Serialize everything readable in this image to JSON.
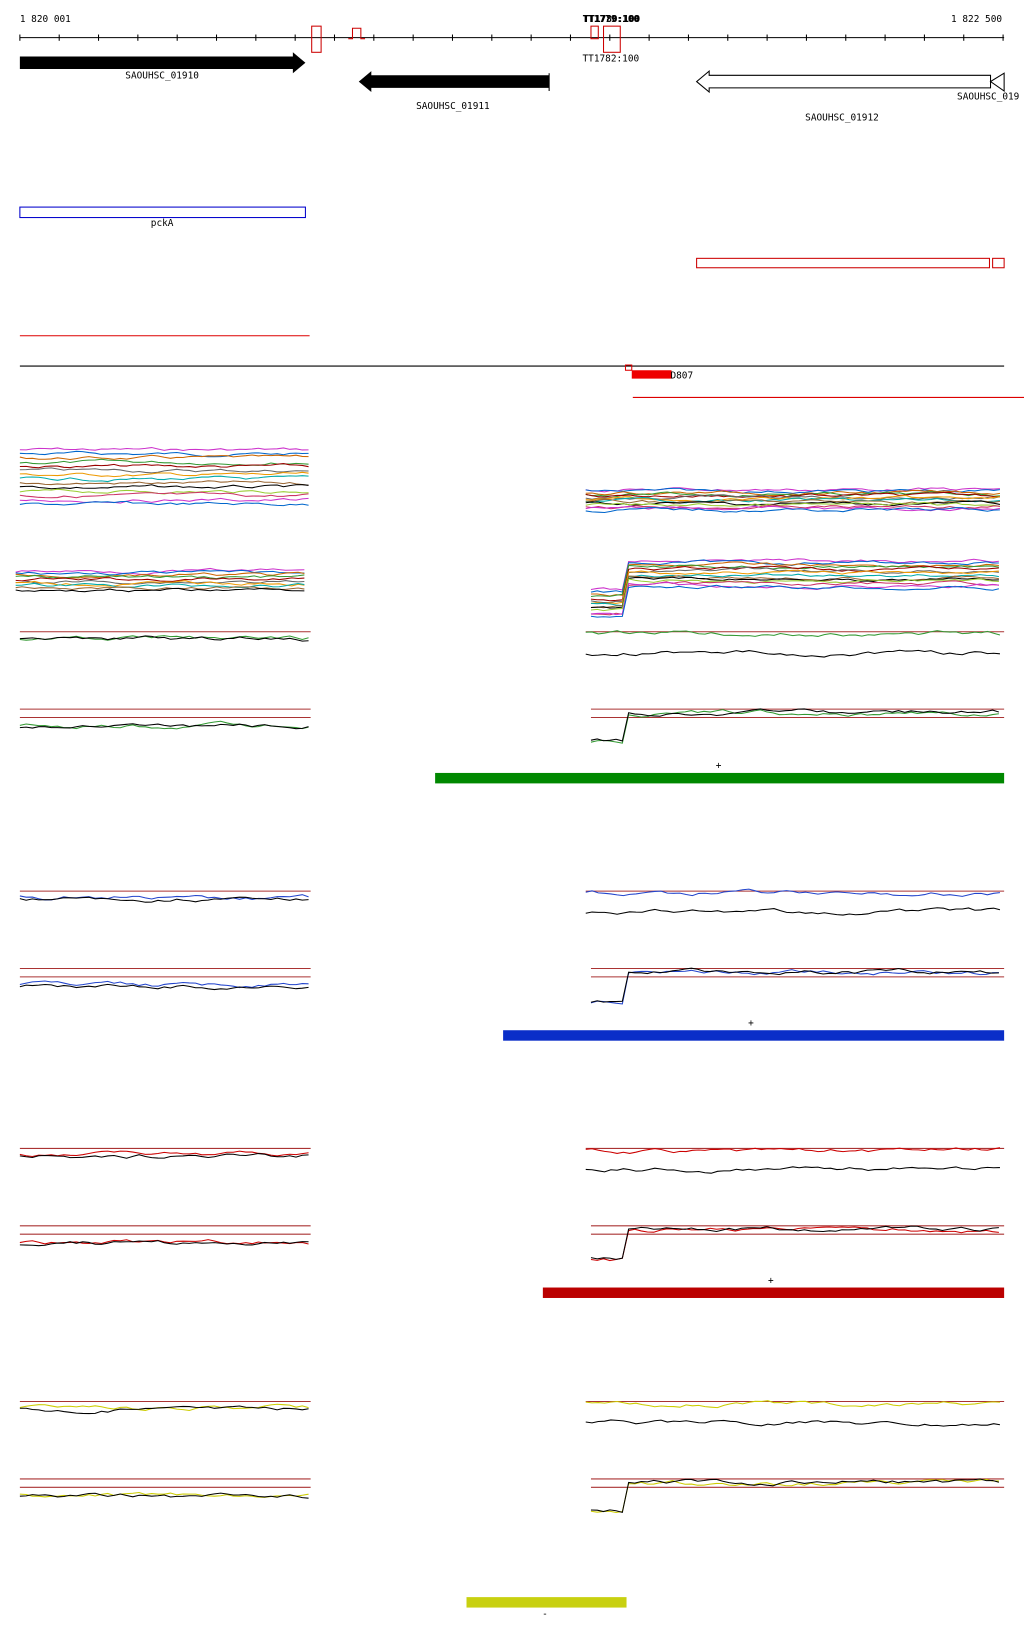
{
  "ruler": {
    "start": "1 820 001",
    "end": "1 822 500"
  },
  "terminators": {
    "top_a": "TT1779:100",
    "top_b": "TT1780:100",
    "bottom": "TT1782:100"
  },
  "genes": [
    "SAOUHSC_01910",
    "SAOUHSC_01911",
    "SAOUHSC_01912",
    "SAOUHSC_019"
  ],
  "operon": "pckA",
  "feature": "D807",
  "strands": [
    "+",
    "+",
    "+",
    "-"
  ]
}
